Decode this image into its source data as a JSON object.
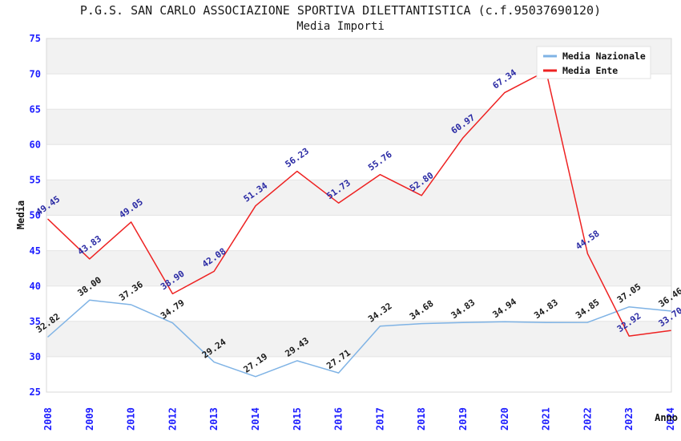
{
  "header": {
    "title": "P.G.S. SAN CARLO ASSOCIAZIONE SPORTIVA DILETTANTISTICA (c.f.95037690120)",
    "subtitle": "Media Importi"
  },
  "chart_data": {
    "type": "line",
    "title": "P.G.S. SAN CARLO ASSOCIAZIONE SPORTIVA DILETTANTISTICA (c.f.95037690120)",
    "subtitle": "Media Importi",
    "xlabel": "Anno",
    "ylabel": "Media",
    "ylim": [
      25,
      75
    ],
    "ytick_step": 5,
    "yticks": [
      25,
      30,
      35,
      40,
      45,
      50,
      55,
      60,
      65,
      70,
      75
    ],
    "grid": true,
    "categories": [
      "2008",
      "2009",
      "2010",
      "2012",
      "2013",
      "2014",
      "2015",
      "2016",
      "2017",
      "2018",
      "2019",
      "2020",
      "2021",
      "2022",
      "2023",
      "2024"
    ],
    "series": [
      {
        "id": "media-nazionale",
        "name": "Media Nazionale",
        "color": "#7fb3e5",
        "label_color": "#1a1a1a",
        "values": [
          32.82,
          38.0,
          37.36,
          34.79,
          29.24,
          27.19,
          29.43,
          27.71,
          34.32,
          34.68,
          34.83,
          34.94,
          34.83,
          34.85,
          37.05,
          36.46
        ],
        "hidden_labels": []
      },
      {
        "id": "media-ente",
        "name": "Media Ente",
        "color": "#ee2222",
        "label_color": "#2a2aa4",
        "values": [
          49.45,
          43.83,
          49.05,
          38.9,
          42.08,
          51.34,
          56.23,
          51.73,
          55.76,
          52.8,
          60.97,
          67.34,
          70.4,
          44.58,
          32.92,
          33.7
        ],
        "hidden_labels": [
          12
        ]
      }
    ],
    "legend": {
      "position": "top-right",
      "items": [
        "Media Nazionale",
        "Media Ente"
      ]
    },
    "style": {
      "band_fill": "#f2f2f2",
      "grid_color": "#e4e4e4",
      "frame_color": "#d8d8d8",
      "tick_label_color": "#1d1dff",
      "axis_title_color": "#111111",
      "legend_border": "#e2e2e2"
    }
  }
}
